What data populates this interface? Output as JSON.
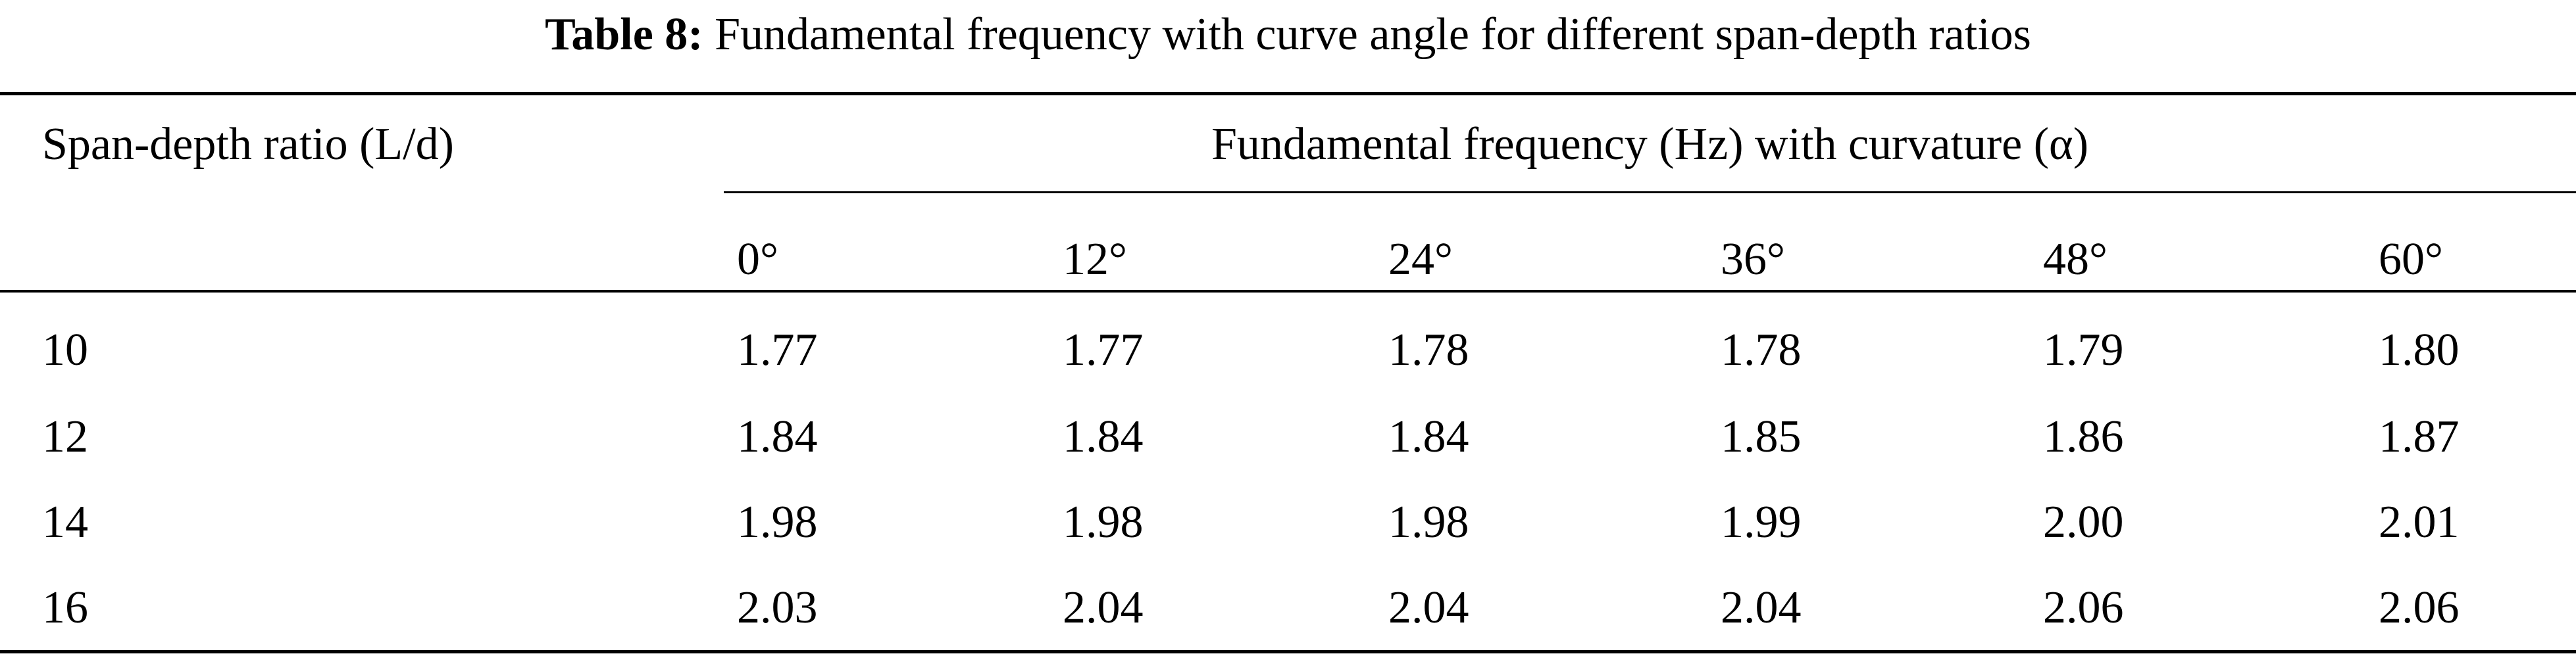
{
  "caption": {
    "label": "Table 8:",
    "text": "Fundamental frequency with curve angle for different span-depth ratios"
  },
  "table": {
    "stub_header": "Span-depth ratio (L/d)",
    "group_header": "Fundamental frequency (Hz) with curvature (α)",
    "angles": [
      "0°",
      "12°",
      "24°",
      "36°",
      "48°",
      "60°"
    ],
    "rows": [
      {
        "ratio": "10",
        "values": [
          "1.77",
          "1.77",
          "1.78",
          "1.78",
          "1.79",
          "1.80"
        ]
      },
      {
        "ratio": "12",
        "values": [
          "1.84",
          "1.84",
          "1.84",
          "1.85",
          "1.86",
          "1.87"
        ]
      },
      {
        "ratio": "14",
        "values": [
          "1.98",
          "1.98",
          "1.98",
          "1.99",
          "2.00",
          "2.01"
        ]
      },
      {
        "ratio": "16",
        "values": [
          "2.03",
          "2.04",
          "2.04",
          "2.04",
          "2.06",
          "2.06"
        ]
      }
    ]
  }
}
